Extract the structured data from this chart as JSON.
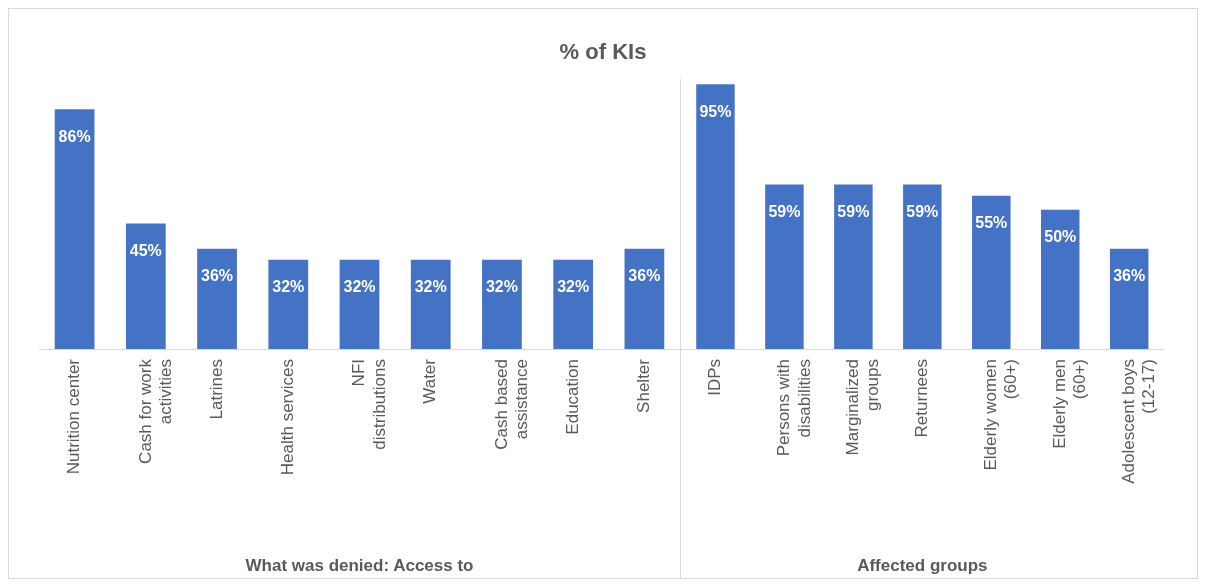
{
  "chart_data": [
    {
      "type": "bar",
      "title": "% of KIs",
      "xlabel": "What was denied: Access to",
      "categories": [
        "Nutrition center",
        "Cash for work activities",
        "Latrines",
        "Health services",
        "NFI distributions",
        "Water",
        "Cash based assistance",
        "Education",
        "Shelter"
      ],
      "values": [
        86,
        45,
        36,
        32,
        32,
        32,
        32,
        32,
        36
      ],
      "value_labels": [
        "86%",
        "45%",
        "36%",
        "32%",
        "32%",
        "32%",
        "32%",
        "32%",
        "36%"
      ],
      "color": "#4472c4",
      "grid": false,
      "legend": false,
      "tick_labels": "x"
    },
    {
      "type": "bar",
      "xlabel": "Affected groups",
      "categories": [
        "IDPs",
        "Persons with disabilities",
        "Marginalized groups",
        "Returnees",
        "Elderly women (60+)",
        "Elderly men (60+)",
        "Adolescent boys (12-17)"
      ],
      "values": [
        95,
        59,
        59,
        59,
        55,
        50,
        36
      ],
      "value_labels": [
        "95%",
        "59%",
        "59%",
        "59%",
        "55%",
        "50%",
        "36%"
      ],
      "color": "#4472c4",
      "grid": false,
      "legend": false,
      "tick_labels": "x"
    }
  ]
}
